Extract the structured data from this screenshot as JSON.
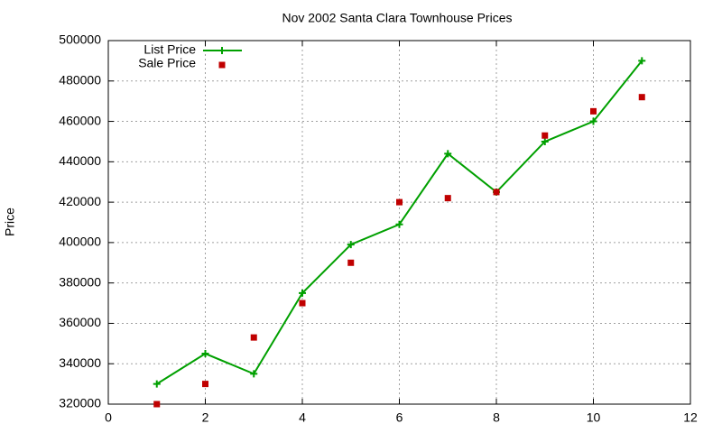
{
  "chart_data": {
    "type": "line",
    "title": "Nov 2002 Santa Clara Townhouse Prices",
    "y_label": "Price",
    "x": [
      1,
      2,
      3,
      4,
      5,
      6,
      7,
      8,
      9,
      10,
      11
    ],
    "series": [
      {
        "name": "List Price",
        "color": "#00a000",
        "mode": "lines+markers",
        "marker": "plus",
        "values": [
          330000,
          345000,
          335000,
          375000,
          399000,
          409000,
          444000,
          425000,
          450000,
          460000,
          490000
        ]
      },
      {
        "name": "Sale Price",
        "color": "#c00000",
        "mode": "markers",
        "marker": "square",
        "values": [
          320000,
          330000,
          353000,
          370000,
          390000,
          420000,
          422000,
          425000,
          453000,
          465000,
          472000
        ]
      }
    ],
    "xlim": [
      0,
      12
    ],
    "xticks": [
      0,
      2,
      4,
      6,
      8,
      10,
      12
    ],
    "ylim": [
      320000,
      500000
    ],
    "yticks": [
      320000,
      340000,
      360000,
      380000,
      400000,
      420000,
      440000,
      460000,
      480000,
      500000
    ],
    "grid": true,
    "legend": "top-left"
  }
}
